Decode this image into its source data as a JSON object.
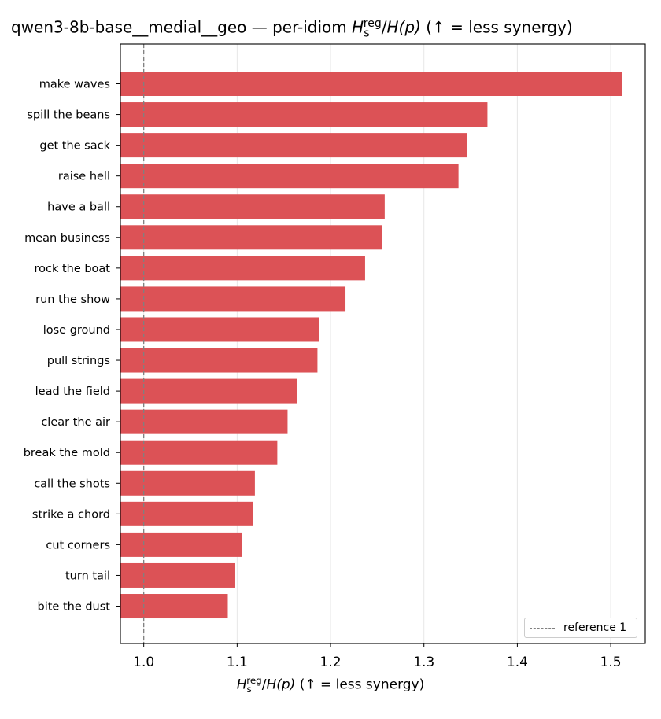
{
  "chart_data": {
    "type": "bar",
    "orientation": "horizontal",
    "title": "qwen3-8b-base__medial__geo — per-idiom H_s^reg/H(p)  (↑ = less synergy)",
    "title_prefix": "qwen3-8b-base__medial__geo — per-idiom ",
    "metric_label": {
      "symbol": "H",
      "subscript": "s",
      "superscript": "reg",
      "denominator": "H(p)",
      "suffix": "(↑ = less synergy)"
    },
    "xlabel": "H_s^reg/H(p)  (↑ = less synergy)",
    "ylabel": "",
    "categories": [
      "make waves",
      "spill the beans",
      "get the sack",
      "raise hell",
      "have a ball",
      "mean business",
      "rock the boat",
      "run the show",
      "lose ground",
      "pull strings",
      "lead the field",
      "clear the air",
      "break the mold",
      "call the shots",
      "strike a chord",
      "cut corners",
      "turn tail",
      "bite the dust"
    ],
    "values": [
      1.512,
      1.368,
      1.346,
      1.337,
      1.258,
      1.255,
      1.237,
      1.216,
      1.188,
      1.186,
      1.164,
      1.154,
      1.143,
      1.119,
      1.117,
      1.105,
      1.098,
      1.09
    ],
    "xlim": [
      0.975,
      1.537
    ],
    "xticks": [
      1.0,
      1.1,
      1.2,
      1.3,
      1.4,
      1.5
    ],
    "xtick_labels": [
      "1.0",
      "1.1",
      "1.2",
      "1.3",
      "1.4",
      "1.5"
    ],
    "bar_color": "#dc5256",
    "grid": "x-axis vertical lines",
    "reference_line": {
      "value": 1.0,
      "label": "reference 1",
      "color": "#808080",
      "style": "dashed"
    },
    "legend": {
      "position": "bottom-right",
      "entries": [
        "reference 1"
      ]
    }
  }
}
